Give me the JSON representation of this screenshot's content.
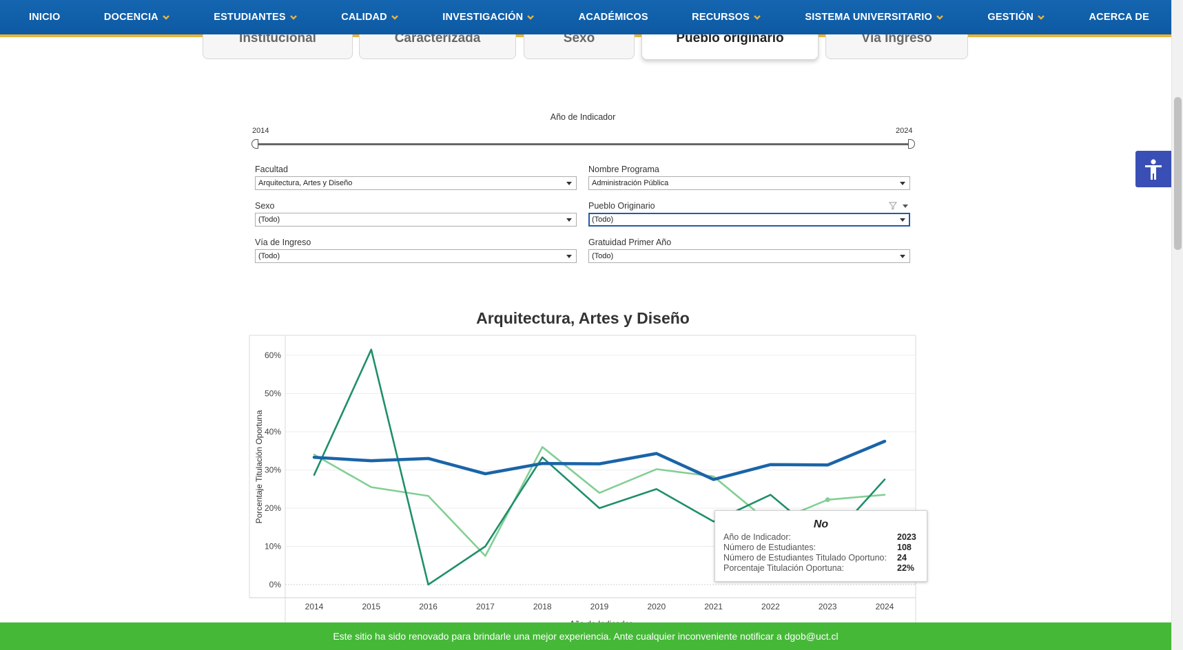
{
  "nav": {
    "items": [
      {
        "label": "INICIO",
        "dropdown": false
      },
      {
        "label": "DOCENCIA",
        "dropdown": true
      },
      {
        "label": "ESTUDIANTES",
        "dropdown": true
      },
      {
        "label": "CALIDAD",
        "dropdown": true
      },
      {
        "label": "INVESTIGACIÓN",
        "dropdown": true
      },
      {
        "label": "ACADÉMICOS",
        "dropdown": false
      },
      {
        "label": "RECURSOS",
        "dropdown": true
      },
      {
        "label": "SISTEMA UNIVERSITARIO",
        "dropdown": true
      },
      {
        "label": "GESTIÓN",
        "dropdown": true
      },
      {
        "label": "ACERCA DE",
        "dropdown": false
      }
    ],
    "chevron_color": "#e9b43c"
  },
  "tabs": [
    {
      "label": "Institucional",
      "active": false
    },
    {
      "label": "Caracterizada",
      "active": false
    },
    {
      "label": "Sexo",
      "active": false
    },
    {
      "label": "Pueblo originario",
      "active": true
    },
    {
      "label": "Vía Ingreso",
      "active": false
    }
  ],
  "filters": {
    "slider": {
      "title": "Año de Indicador",
      "min": "2014",
      "max": "2024"
    },
    "facultad": {
      "label": "Facultad",
      "value": "Arquitectura, Artes y Diseño"
    },
    "programa": {
      "label": "Nombre Programa",
      "value": "Administración Pública"
    },
    "sexo": {
      "label": "Sexo",
      "value": "(Todo)"
    },
    "pueblo": {
      "label": "Pueblo Originario",
      "value": "(Todo)"
    },
    "via": {
      "label": "Vía de Ingreso",
      "value": "(Todo)"
    },
    "gratuidad": {
      "label": "Gratuidad Primer Año",
      "value": "(Todo)"
    }
  },
  "chart_data": {
    "type": "line",
    "title": "Arquitectura, Artes y Diseño",
    "xlabel": "Año de Indicador",
    "ylabel": "Porcentaje Titulación Oportuna",
    "x": [
      2014,
      2015,
      2016,
      2017,
      2018,
      2019,
      2020,
      2021,
      2022,
      2023,
      2024
    ],
    "ylim": [
      0,
      0.65
    ],
    "yticks": [
      "0%",
      "10%",
      "20%",
      "30%",
      "40%",
      "50%",
      "60%"
    ],
    "grid": true,
    "series": [
      {
        "color": "#1a64a8",
        "values": [
          0.333,
          0.324,
          0.33,
          0.29,
          0.317,
          0.316,
          0.343,
          0.275,
          0.314,
          0.313,
          0.375
        ]
      },
      {
        "color": "#1f8f6a",
        "values": [
          0.287,
          0.615,
          0.0,
          0.1,
          0.333,
          0.2,
          0.25,
          0.165,
          0.235,
          0.11,
          0.275
        ]
      },
      {
        "name": "No",
        "color": "#82cf94",
        "values": [
          0.34,
          0.255,
          0.232,
          0.075,
          0.36,
          0.24,
          0.302,
          0.283,
          0.16,
          0.222,
          0.235
        ]
      }
    ],
    "tooltip": {
      "title": "No",
      "rows": [
        {
          "label": "Año de Indicador:",
          "value": "2023"
        },
        {
          "label": "Número de Estudiantes:",
          "value": "108"
        },
        {
          "label": "Número de Estudiantes Titulado Oportuno:",
          "value": "24"
        },
        {
          "label": "Porcentaje Titulación Oportuna:",
          "value": "22%"
        }
      ]
    }
  },
  "banner": {
    "text": "Este sitio ha sido renovado para brindarle una mejor experiencia. Ante cualquier inconveniente notificar a dgob@uct.cl"
  },
  "accessibility": {
    "icon": "accessibility-icon"
  }
}
